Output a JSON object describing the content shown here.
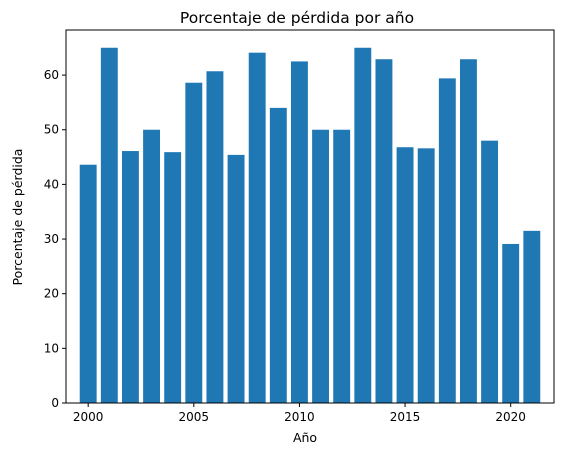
{
  "chart_data": {
    "type": "bar",
    "title": "Porcentaje de pérdida por año",
    "xlabel": "Año",
    "ylabel": "Porcentaje de pérdida",
    "x": [
      2000,
      2001,
      2002,
      2003,
      2004,
      2005,
      2006,
      2007,
      2008,
      2009,
      2010,
      2011,
      2012,
      2013,
      2014,
      2015,
      2016,
      2017,
      2018,
      2019,
      2020,
      2021
    ],
    "values": [
      43.6,
      65.0,
      46.1,
      50.0,
      45.9,
      58.6,
      60.7,
      45.4,
      64.1,
      54.0,
      62.5,
      50.0,
      50.0,
      65.0,
      62.9,
      46.8,
      46.6,
      59.4,
      62.9,
      48.0,
      29.1,
      31.5
    ],
    "xlim": [
      1998.95,
      2022.05
    ],
    "ylim": [
      0,
      68.25
    ],
    "xticks": [
      2000,
      2005,
      2010,
      2015,
      2020
    ],
    "yticks": [
      0,
      10,
      20,
      30,
      40,
      50,
      60
    ],
    "bar_color": "#1f77b4",
    "grid": false,
    "legend": "none"
  }
}
